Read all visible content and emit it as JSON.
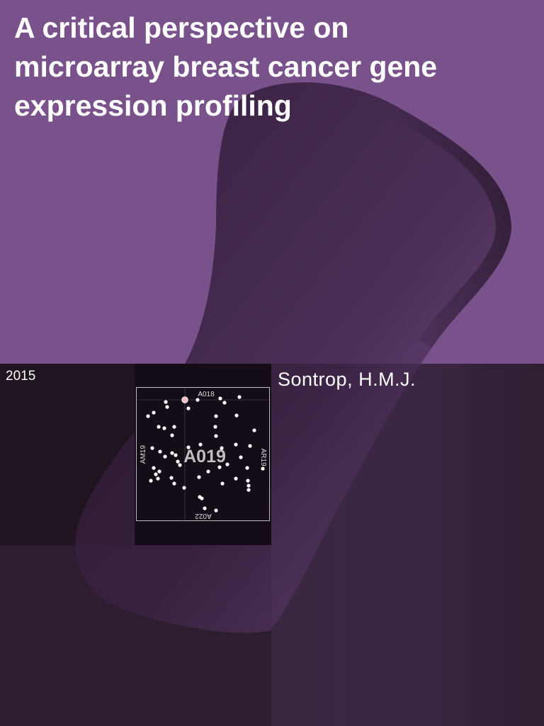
{
  "cover": {
    "title": "A critical perspective on microarray breast cancer gene expression profiling",
    "year": "2015",
    "author": "Sontrop, H.M.J."
  },
  "plate_map": {
    "center_code": "A019",
    "top_label": "A018",
    "left_label": "AM19",
    "right_label": "AR19",
    "bottom_label": "A022"
  },
  "colors": {
    "top_background": "#7a528b",
    "bottom_background": "#3b2845",
    "shape_color": "#2e1a33",
    "highlight_dot": "#f2b7c4"
  }
}
